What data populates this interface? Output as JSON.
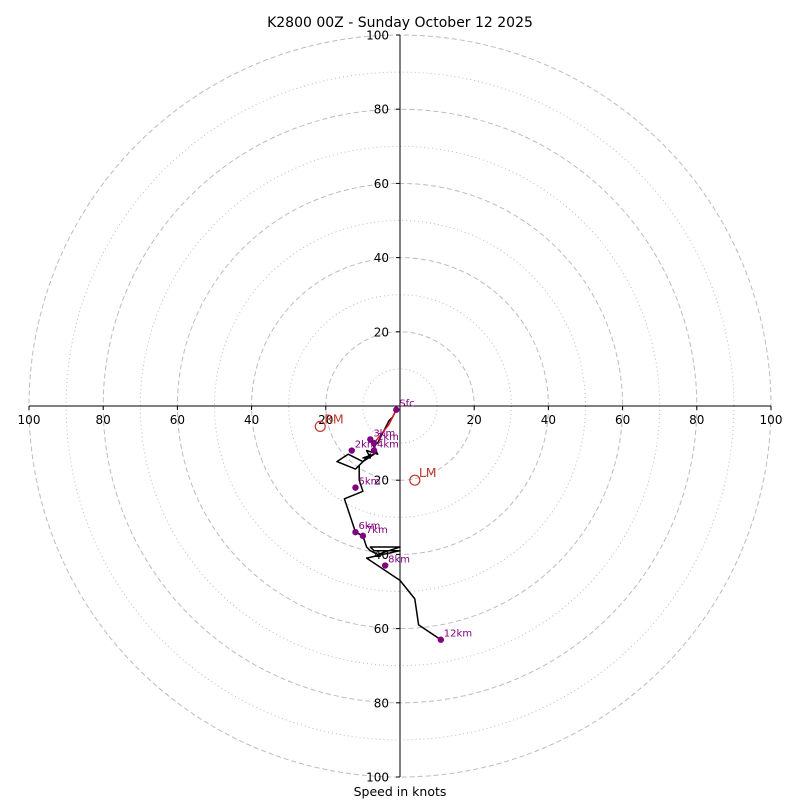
{
  "chart_data": {
    "type": "hodograph",
    "title": "K2800 00Z - Sunday October 12 2025",
    "xlabel": "Speed in knots",
    "range": 100,
    "ring_major": [
      20,
      40,
      60,
      80,
      100
    ],
    "ring_minor": [
      10,
      30,
      50,
      70,
      90
    ],
    "ticks": {
      "left": [
        100,
        80,
        60,
        40,
        20
      ],
      "right": [
        20,
        40,
        60,
        80,
        100
      ],
      "up": [
        20,
        40,
        60,
        80,
        100
      ],
      "down": [
        20,
        40,
        60,
        80,
        100
      ]
    },
    "hodograph_line": [
      [
        -1,
        -1
      ],
      [
        -2,
        -3
      ],
      [
        -3,
        -4
      ],
      [
        -5,
        -8
      ],
      [
        -6,
        -10
      ],
      [
        -7,
        -10
      ],
      [
        -8,
        -9
      ],
      [
        -6,
        -13
      ],
      [
        -9,
        -12
      ],
      [
        -8,
        -14
      ],
      [
        -10,
        -14
      ],
      [
        -7,
        -13
      ],
      [
        -10,
        -15
      ],
      [
        -14,
        -13
      ],
      [
        -17,
        -15
      ],
      [
        -12,
        -17
      ],
      [
        -8,
        -13
      ],
      [
        -11,
        -16
      ],
      [
        -11,
        -20
      ],
      [
        -10,
        -23
      ],
      [
        -15,
        -25
      ],
      [
        -12,
        -34
      ],
      [
        -10,
        -35
      ],
      [
        -9,
        -38
      ],
      [
        -8,
        -39
      ],
      [
        -6,
        -40
      ],
      [
        -3,
        -39
      ],
      [
        0,
        -38
      ],
      [
        -8,
        -38
      ],
      [
        -7,
        -39
      ],
      [
        0,
        -39
      ],
      [
        -9,
        -41
      ],
      [
        0,
        -47
      ],
      [
        4,
        -52
      ],
      [
        5,
        -59
      ],
      [
        11,
        -63
      ]
    ],
    "red_segment": [
      [
        -1,
        -1
      ],
      [
        -3,
        -5
      ],
      [
        -7,
        -10
      ]
    ],
    "height_markers": [
      {
        "label": "Sfc",
        "u": -1,
        "v": -1
      },
      {
        "label": "1km",
        "u": -7,
        "v": -10
      },
      {
        "label": "3km",
        "u": -8,
        "v": -9
      },
      {
        "label": "2km",
        "u": -13,
        "v": -12
      },
      {
        "label": "4km",
        "u": -7,
        "v": -12
      },
      {
        "label": "5km",
        "u": -12,
        "v": -22
      },
      {
        "label": "6km",
        "u": -12,
        "v": -34
      },
      {
        "label": "7km",
        "u": -10,
        "v": -35
      },
      {
        "label": "8km",
        "u": -4,
        "v": -43
      },
      {
        "label": "12km",
        "u": 11,
        "v": -63
      }
    ],
    "storm_motions": [
      {
        "label": "RM",
        "u": -21.5,
        "v": -5.5
      },
      {
        "label": "LM",
        "u": 4,
        "v": -20
      }
    ],
    "colors": {
      "hodograph": "#000000",
      "red_segment": "#e0161e",
      "height_marker": "#800080",
      "storm_motion": "#c0392b",
      "ring": "#bcbcbc",
      "axis": "#000000"
    }
  }
}
